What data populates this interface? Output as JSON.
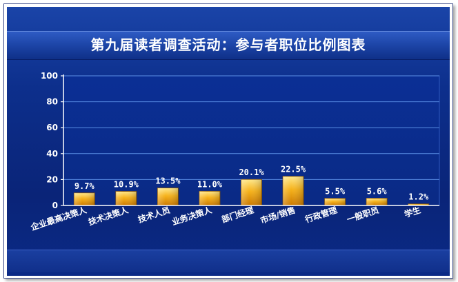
{
  "chart_data": {
    "type": "bar",
    "title": "第九届读者调查活动：参与者职位比例图表",
    "categories": [
      "企业最高决策人",
      "技术决策人",
      "技术人员",
      "业务决策人",
      "部门经理",
      "市场/销售",
      "行政管理",
      "一般职员",
      "学生"
    ],
    "values": [
      9.7,
      10.9,
      13.5,
      11.0,
      20.1,
      22.5,
      5.5,
      5.6,
      1.2
    ],
    "value_labels": [
      "9.7%",
      "10.9%",
      "13.5%",
      "11.0%",
      "20.1%",
      "22.5%",
      "5.5%",
      "5.6%",
      "1.2%"
    ],
    "yticks": [
      "0",
      "20",
      "40",
      "60",
      "80",
      "100"
    ],
    "ylim": [
      0,
      100
    ],
    "grid": true,
    "colors": {
      "bar_top": "#ffe07a",
      "bar_mid": "#f6b21a",
      "bar_bottom": "#c97800",
      "grid": "#5b8ee6",
      "axis": "#ffffff",
      "label": "#ffffff"
    }
  }
}
